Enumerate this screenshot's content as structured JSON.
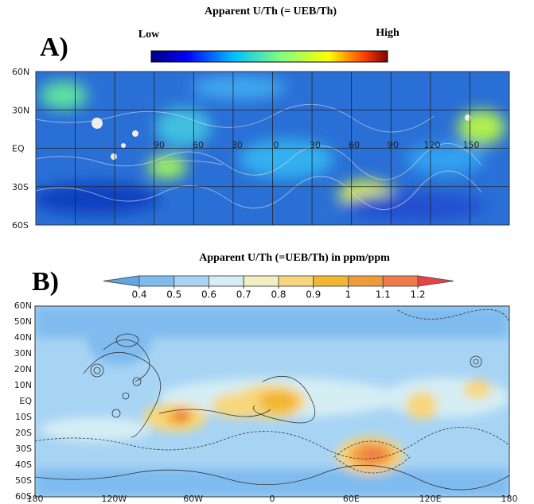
{
  "panel_a": {
    "title": "Apparent U/Th (= UEB/Th)",
    "label": "A)",
    "legend_low": "Low",
    "legend_high": "High",
    "lat_labels": [
      "60N",
      "30N",
      "EQ",
      "30S",
      "60S"
    ],
    "lon_labels": [
      "90",
      "60",
      "30",
      "0",
      "30",
      "60",
      "90",
      "120",
      "150"
    ]
  },
  "panel_b": {
    "title": "Apparent U/Th (=UEB/Th) in ppm/ppm",
    "label": "B)",
    "colorbar_ticks": [
      0.4,
      0.5,
      0.6,
      0.7,
      0.8,
      0.9,
      1,
      1.1,
      1.2
    ],
    "colorbar_colors": [
      "#5ea6e6",
      "#7fbbef",
      "#a8d4f4",
      "#d4eef4",
      "#f4efc0",
      "#f8d77c",
      "#f2b632",
      "#f19a38",
      "#f07a4c",
      "#ee4040"
    ],
    "lat_labels": [
      "60N",
      "50N",
      "40N",
      "30N",
      "20N",
      "10N",
      "EQ",
      "10S",
      "20S",
      "30S",
      "40S",
      "50S",
      "60S"
    ],
    "lon_labels": [
      "180",
      "120W",
      "60W",
      "0",
      "60E",
      "120E",
      "180"
    ]
  }
}
